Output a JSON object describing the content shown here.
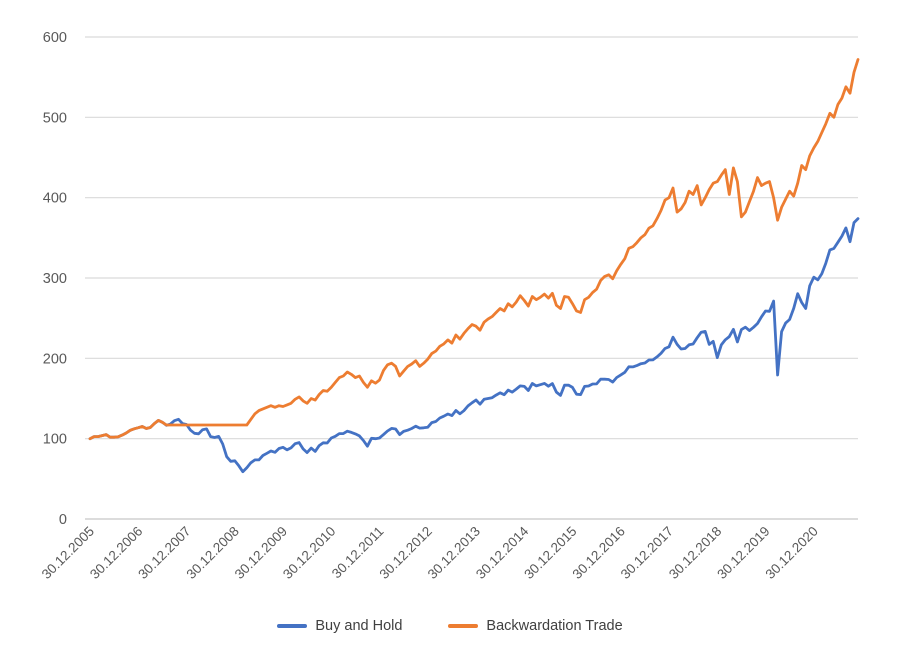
{
  "chart_data": {
    "type": "line",
    "title": "",
    "xlabel": "",
    "ylabel": "",
    "ylim": [
      0,
      600
    ],
    "yticks": [
      0,
      100,
      200,
      300,
      400,
      500,
      600
    ],
    "grid": true,
    "legend_position": "bottom",
    "grid_color": "#d9d9d9",
    "axis_color": "#c6c6c6",
    "label_color": "#595959",
    "x_unit": "monthly points starting 30.12.2005",
    "x_tick_labels": [
      "30.12.2005",
      "30.12.2006",
      "30.12.2007",
      "30.12.2008",
      "30.12.2009",
      "30.12.2010",
      "30.12.2011",
      "30.12.2012",
      "30.12.2013",
      "30.12.2014",
      "30.12.2015",
      "30.12.2016",
      "30.12.2017",
      "30.12.2018",
      "30.12.2019",
      "30.12.2020"
    ],
    "months_per_tick": 12,
    "series": [
      {
        "name": "Buy and Hold",
        "color": "#4472C4",
        "values": [
          100,
          102.6,
          102.6,
          103.8,
          105.1,
          101.8,
          101.8,
          102.3,
          104.5,
          107.1,
          110.4,
          112.3,
          113.6,
          115.2,
          112.7,
          113.9,
          118.8,
          122.7,
          120.4,
          116.6,
          118.1,
          122.4,
          124.1,
          118.7,
          117.6,
          110.5,
          106.7,
          106,
          111.1,
          112.2,
          102.6,
          101.5,
          102.8,
          93.4,
          77.6,
          71.8,
          72.4,
          66.2,
          58.9,
          63.9,
          70,
          73.6,
          73.6,
          79.1,
          81.8,
          84.7,
          83,
          87.8,
          89.3,
          86.1,
          88.5,
          93.7,
          95.1,
          87.3,
          82.6,
          88.3,
          84.1,
          91.4,
          94.8,
          94.6,
          100.8,
          103,
          106.3,
          106.3,
          109.3,
          107.8,
          105.9,
          103.5,
          97.7,
          90.6,
          100.4,
          99.9,
          100.8,
          105.1,
          109.5,
          112.8,
          112,
          105,
          109.1,
          110.5,
          112.7,
          115.5,
          113.1,
          113.5,
          114.3,
          120,
          121.4,
          125.7,
          128,
          130.7,
          128.7,
          135.1,
          130.9,
          134.8,
          140.8,
          144.7,
          148.1,
          142.9,
          149,
          150,
          151,
          154.2,
          157.1,
          154.7,
          160.5,
          158,
          161.7,
          165.7,
          165,
          159.9,
          168.7,
          165.7,
          167.2,
          168.8,
          165.3,
          168.6,
          158,
          153.8,
          166.6,
          166.7,
          163.8,
          155.4,
          154.8,
          165.1,
          165.5,
          168,
          168.2,
          174.2,
          174,
          173.7,
          170.4,
          176.2,
          179.4,
          182.6,
          189.4,
          189.3,
          191,
          193.3,
          194.2,
          197.9,
          198.1,
          201.8,
          206.3,
          212.2,
          214.3,
          226.3,
          217.5,
          211.6,
          212.2,
          216.8,
          217.8,
          225.7,
          232.5,
          233.5,
          217.3,
          221.2,
          200.9,
          216.7,
          223.1,
          227.1,
          236.1,
          220.5,
          235.8,
          238.8,
          234.5,
          238.6,
          243.4,
          251.7,
          258.9,
          258.5,
          271.3,
          179.2,
          233.3,
          243.9,
          248.4,
          262.1,
          280.5,
          269.5,
          262,
          290.2,
          301,
          297.6,
          305.4,
          318.4,
          335,
          336.9,
          344.4,
          352.2,
          362.4,
          345.2,
          369,
          374
        ]
      },
      {
        "name": "Backwardation Trade",
        "color": "#ED7D31",
        "values": [
          100,
          102.6,
          102.6,
          103.8,
          105.1,
          101.8,
          101.8,
          102.3,
          104.5,
          107.1,
          110.4,
          112.3,
          113.6,
          115.2,
          112.7,
          113.9,
          118.8,
          122.7,
          120.4,
          117,
          117,
          117,
          117,
          117,
          117,
          117,
          117,
          117,
          117,
          117,
          117,
          117,
          117,
          117,
          117,
          117,
          117,
          117,
          117,
          117,
          124,
          131,
          135,
          137,
          139,
          141,
          139,
          141,
          140,
          142,
          144,
          149,
          152,
          147,
          144,
          150,
          148,
          155,
          160,
          159,
          164,
          170,
          176,
          178,
          183,
          180,
          176,
          178,
          170,
          164,
          172,
          169,
          173,
          185,
          192,
          194,
          190,
          178,
          184,
          190,
          193,
          197,
          190,
          194,
          199,
          206,
          209,
          215,
          218,
          223,
          219,
          229,
          224,
          231,
          237,
          242,
          240,
          235,
          245,
          249,
          252,
          257,
          262,
          259,
          268,
          264,
          270,
          278,
          272,
          265,
          277,
          273,
          276,
          280,
          275,
          281,
          266,
          262,
          277,
          276,
          268,
          259,
          257,
          273,
          276,
          282,
          286,
          297,
          302,
          304,
          299,
          309,
          317,
          324,
          337,
          339,
          344,
          350,
          354,
          362,
          365,
          374,
          384,
          397,
          400,
          412,
          382,
          386,
          394,
          408,
          404,
          415,
          391,
          400,
          410,
          418,
          420,
          428,
          435,
          404,
          437,
          420,
          376,
          382,
          395,
          408,
          425,
          415,
          418,
          420,
          400,
          372,
          388,
          398,
          408,
          402,
          418,
          440,
          435,
          452,
          462,
          470,
          481,
          492,
          505,
          500,
          516,
          524,
          538,
          530,
          556,
          572
        ]
      }
    ]
  }
}
